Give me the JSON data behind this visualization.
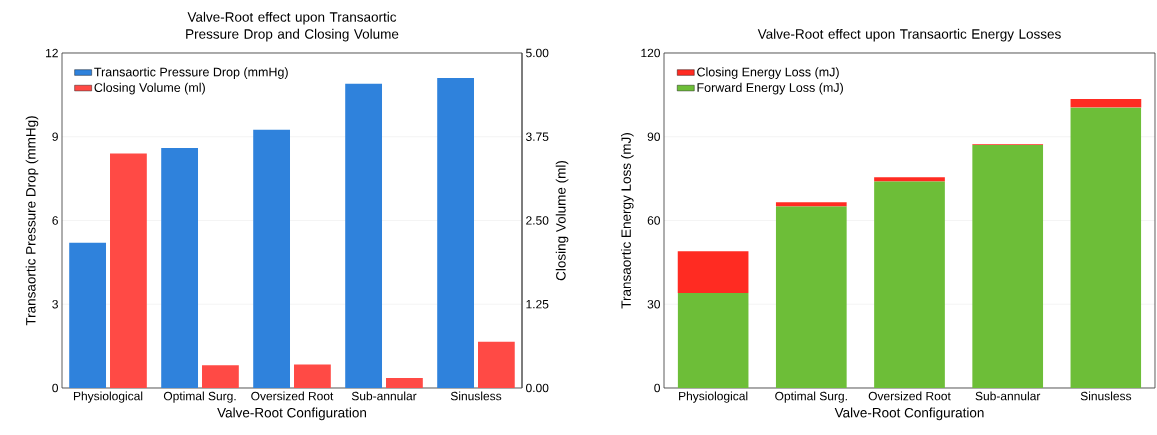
{
  "chart_data": [
    {
      "type": "bar",
      "title": "Valve-Root effect upon Transaortic Pressure Drop and Closing Volume",
      "xlabel": "Valve-Root Configuration",
      "ylabel": "Transaortic Pressure Drop (mmHg)",
      "y2label": "Closing Volume (ml)",
      "categories": [
        "Physiological",
        "Optimal Surg.",
        "Oversized Root",
        "Sub-annular",
        "Sinusless"
      ],
      "series": [
        {
          "name": "Transaortic Pressure Drop (mmHg)",
          "color": "#2f82dc",
          "values": [
            5.2,
            8.6,
            9.25,
            10.9,
            11.1
          ]
        },
        {
          "name": "Closing Volume (ml)",
          "color": "#ff4a45",
          "axis": "y2",
          "values": [
            3.5,
            0.34,
            0.35,
            0.15,
            0.69
          ]
        }
      ],
      "ylim": [
        0,
        12
      ],
      "yticks": [
        0,
        3,
        6,
        9,
        12
      ],
      "y2lim": [
        0,
        5
      ],
      "y2ticks": [
        {
          "value": 0,
          "label": "0.00"
        },
        {
          "value": 1.25,
          "label": "1.25"
        },
        {
          "value": 2.5,
          "label": "2.50"
        },
        {
          "value": 3.75,
          "label": "3.75"
        },
        {
          "value": 5,
          "label": "5.00"
        }
      ],
      "grid": "y",
      "legend": "top left"
    },
    {
      "type": "bar",
      "stacked": true,
      "title": "Valve-Root effect upon Transaortic Energy Losses",
      "xlabel": "Valve-Root Configuration",
      "ylabel": "Transaortic Energy Loss (mJ)",
      "categories": [
        "Physiological",
        "Optimal Surg.",
        "Oversized Root",
        "Sub-annular",
        "Sinusless"
      ],
      "series": [
        {
          "name": "Forward Energy Loss (mJ)",
          "color": "#6dbe38",
          "values": [
            34,
            65,
            74,
            87,
            100.5
          ]
        },
        {
          "name": "Closing Energy Loss (mJ)",
          "color": "#ff2b22",
          "values": [
            15,
            1.5,
            1.5,
            0.3,
            3
          ]
        }
      ],
      "ylim": [
        0,
        120
      ],
      "yticks": [
        0,
        30,
        60,
        90,
        120
      ],
      "grid": "y",
      "legend": "top left"
    }
  ]
}
